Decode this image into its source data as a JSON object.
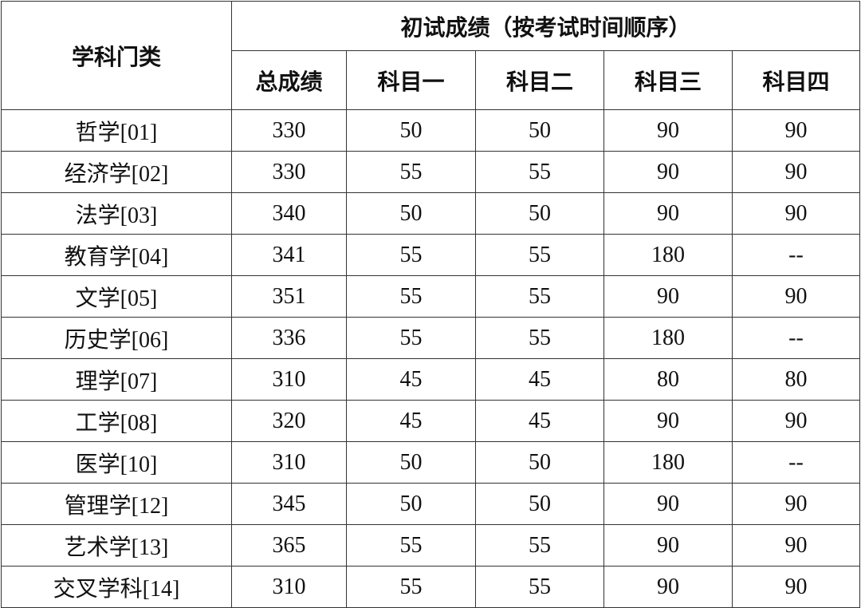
{
  "header": {
    "category_label": "学科门类",
    "group_label": "初试成绩（按考试时间顺序）",
    "columns": [
      "总成绩",
      "科目一",
      "科目二",
      "科目三",
      "科目四"
    ]
  },
  "rows": [
    {
      "category": "哲学[01]",
      "values": [
        "330",
        "50",
        "50",
        "90",
        "90"
      ]
    },
    {
      "category": "经济学[02]",
      "values": [
        "330",
        "55",
        "55",
        "90",
        "90"
      ]
    },
    {
      "category": "法学[03]",
      "values": [
        "340",
        "50",
        "50",
        "90",
        "90"
      ]
    },
    {
      "category": "教育学[04]",
      "values": [
        "341",
        "55",
        "55",
        "180",
        "--"
      ]
    },
    {
      "category": "文学[05]",
      "values": [
        "351",
        "55",
        "55",
        "90",
        "90"
      ]
    },
    {
      "category": "历史学[06]",
      "values": [
        "336",
        "55",
        "55",
        "180",
        "--"
      ]
    },
    {
      "category": "理学[07]",
      "values": [
        "310",
        "45",
        "45",
        "80",
        "80"
      ]
    },
    {
      "category": "工学[08]",
      "values": [
        "320",
        "45",
        "45",
        "90",
        "90"
      ]
    },
    {
      "category": "医学[10]",
      "values": [
        "310",
        "50",
        "50",
        "180",
        "--"
      ]
    },
    {
      "category": "管理学[12]",
      "values": [
        "345",
        "50",
        "50",
        "90",
        "90"
      ]
    },
    {
      "category": "艺术学[13]",
      "values": [
        "365",
        "55",
        "55",
        "90",
        "90"
      ]
    },
    {
      "category": "交叉学科[14]",
      "values": [
        "310",
        "55",
        "55",
        "90",
        "90"
      ]
    }
  ]
}
